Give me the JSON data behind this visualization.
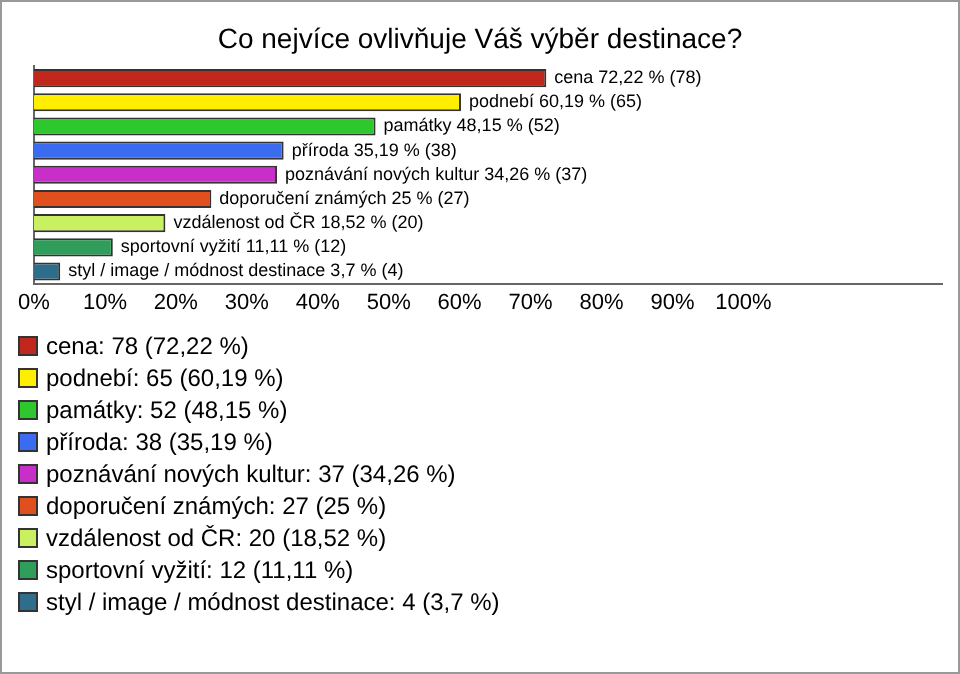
{
  "chart_data": {
    "type": "bar",
    "orientation": "horizontal",
    "title": "Co nejvíce ovlivňuje Váš výběr destinace?",
    "categories": [
      "cena",
      "podnebí",
      "památky",
      "příroda",
      "poznávání nových kultur",
      "doporučení známých",
      "vzdálenost od ČR",
      "sportovní vyžití",
      "styl / image / módnost destinace"
    ],
    "values": [
      72.22,
      60.19,
      48.15,
      35.19,
      34.26,
      25,
      18.52,
      11.11,
      3.7
    ],
    "colors": [
      "#c0281e",
      "#ffee00",
      "#2ec82e",
      "#3b6cf0",
      "#c82ec8",
      "#e0501e",
      "#c8f060",
      "#2e9e5a",
      "#2e6e8c"
    ],
    "value_labels": [
      "72,22 % (78)",
      "60,19 % (65)",
      "48,15 % (52)",
      "35,19 % (38)",
      "34,26 % (37)",
      "25 % (27)",
      "18,52 % (20)",
      "11,11 % (12)",
      "3,7 % (4)"
    ],
    "xlim": [
      0,
      128
    ],
    "xticks": [
      {
        "value": 0,
        "label": "0%"
      },
      {
        "value": 10,
        "label": "10%"
      },
      {
        "value": 20,
        "label": "20%"
      },
      {
        "value": 30,
        "label": "30%"
      },
      {
        "value": 40,
        "label": "40%"
      },
      {
        "value": 50,
        "label": "50%"
      },
      {
        "value": 60,
        "label": "60%"
      },
      {
        "value": 70,
        "label": "70%"
      },
      {
        "value": 80,
        "label": "80%"
      },
      {
        "value": 90,
        "label": "90%"
      },
      {
        "value": 100,
        "label": "100%"
      }
    ],
    "tick_labels": "x",
    "grid": false,
    "legend": false,
    "annotations": [
      "cena: 78 (72,22 %)",
      "podnebí: 65 (60,19 %)",
      "památky: 52 (48,15 %)",
      "příroda: 38 (35,19 %)",
      "poznávání nových kultur: 37 (34,26 %)",
      "doporučení známých: 27 (25 %)",
      "vzdálenost od ČR: 20 (18,52 %)",
      "sportovní vyžití: 12 (11,11 %)",
      "styl / image / módnost destinace: 4 (3,7 %)"
    ]
  }
}
